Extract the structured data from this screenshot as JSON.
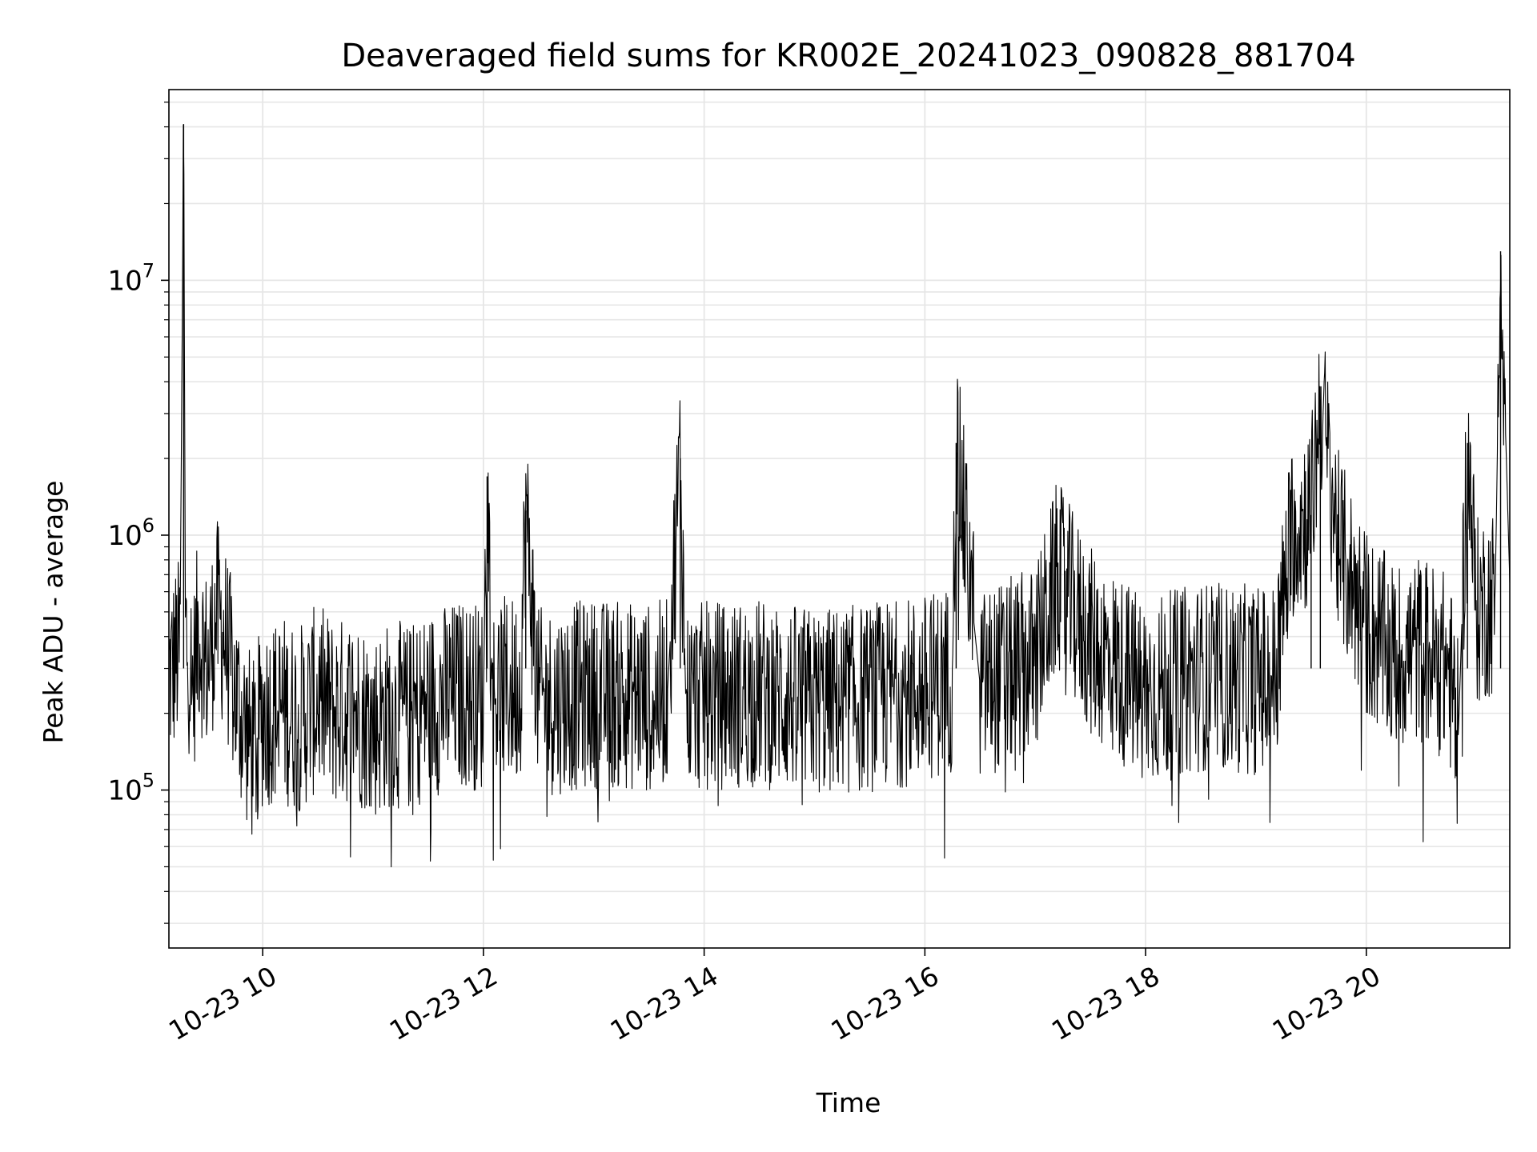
{
  "chart_data": {
    "type": "line",
    "title": "Deaveraged field sums for KR002E_20241023_090828_881704",
    "xlabel": "Time",
    "ylabel": "Peak ADU - average",
    "x_ticks": [
      {
        "time": "2024-10-23 10:00",
        "label": "10-23 10"
      },
      {
        "time": "2024-10-23 12:00",
        "label": "10-23 12"
      },
      {
        "time": "2024-10-23 14:00",
        "label": "10-23 14"
      },
      {
        "time": "2024-10-23 16:00",
        "label": "10-23 16"
      },
      {
        "time": "2024-10-23 18:00",
        "label": "10-23 18"
      },
      {
        "time": "2024-10-23 20:00",
        "label": "10-23 20"
      }
    ],
    "xlim": [
      "2024-10-23 09:09",
      "2024-10-23 21:18"
    ],
    "y_scale": "log",
    "y_ticks": [
      {
        "value": 100000,
        "base": "10",
        "exp": "5"
      },
      {
        "value": 1000000,
        "base": "10",
        "exp": "6"
      },
      {
        "value": 10000000,
        "base": "10",
        "exp": "7"
      }
    ],
    "ylim": [
      24000,
      56000000
    ],
    "grid": true,
    "line_color": "#000000",
    "grid_color": "#e6e6e6",
    "series": [
      {
        "values": [
          [
            "2024-10-23 09:09",
            280000
          ],
          [
            "2024-10-23 09:15",
            360000
          ],
          [
            "2024-10-23 09:17",
            41000000
          ],
          [
            "2024-10-23 09:18",
            420000
          ],
          [
            "2024-10-23 09:22",
            250000
          ],
          [
            "2024-10-23 09:25",
            430000
          ],
          [
            "2024-10-23 09:30",
            300000
          ],
          [
            "2024-10-23 09:35",
            500000
          ],
          [
            "2024-10-23 09:40",
            380000
          ],
          [
            "2024-10-23 09:45",
            240000
          ],
          [
            "2024-10-23 09:50",
            180000
          ],
          [
            "2024-10-23 09:55",
            140000
          ],
          [
            "2024-10-23 10:00",
            200000
          ],
          [
            "2024-10-23 10:10",
            210000
          ],
          [
            "2024-10-23 10:20",
            190000
          ],
          [
            "2024-10-23 10:30",
            230000
          ],
          [
            "2024-10-23 10:40",
            200000
          ],
          [
            "2024-10-23 10:50",
            210000
          ],
          [
            "2024-10-23 11:00",
            180000
          ],
          [
            "2024-10-23 11:10",
            200000
          ],
          [
            "2024-10-23 11:20",
            190000
          ],
          [
            "2024-10-23 11:30",
            220000
          ],
          [
            "2024-10-23 11:40",
            230000
          ],
          [
            "2024-10-23 11:50",
            240000
          ],
          [
            "2024-10-23 12:00",
            230000
          ],
          [
            "2024-10-23 12:02",
            1700000
          ],
          [
            "2024-10-23 12:05",
            240000
          ],
          [
            "2024-10-23 12:20",
            250000
          ],
          [
            "2024-10-23 12:23",
            1250000
          ],
          [
            "2024-10-23 12:30",
            220000
          ],
          [
            "2024-10-23 13:00",
            240000
          ],
          [
            "2024-10-23 13:30",
            230000
          ],
          [
            "2024-10-23 13:40",
            240000
          ],
          [
            "2024-10-23 13:47",
            2000000
          ],
          [
            "2024-10-23 13:50",
            230000
          ],
          [
            "2024-10-23 14:30",
            240000
          ],
          [
            "2024-10-23 15:00",
            220000
          ],
          [
            "2024-10-23 15:30",
            230000
          ],
          [
            "2024-10-23 16:00",
            250000
          ],
          [
            "2024-10-23 16:15",
            280000
          ],
          [
            "2024-10-23 16:17",
            2300000
          ],
          [
            "2024-10-23 16:30",
            260000
          ],
          [
            "2024-10-23 17:00",
            320000
          ],
          [
            "2024-10-23 17:12",
            700000
          ],
          [
            "2024-10-23 17:30",
            380000
          ],
          [
            "2024-10-23 18:00",
            240000
          ],
          [
            "2024-10-23 18:30",
            280000
          ],
          [
            "2024-10-23 19:00",
            270000
          ],
          [
            "2024-10-23 19:10",
            280000
          ],
          [
            "2024-10-23 19:20",
            1100000
          ],
          [
            "2024-10-23 19:30",
            1200000
          ],
          [
            "2024-10-23 19:35",
            3400000
          ],
          [
            "2024-10-23 19:45",
            900000
          ],
          [
            "2024-10-23 20:00",
            450000
          ],
          [
            "2024-10-23 20:15",
            330000
          ],
          [
            "2024-10-23 20:30",
            360000
          ],
          [
            "2024-10-23 20:45",
            300000
          ],
          [
            "2024-10-23 20:50",
            160000
          ],
          [
            "2024-10-23 20:55",
            2300000
          ],
          [
            "2024-10-23 21:00",
            500000
          ],
          [
            "2024-10-23 21:10",
            560000
          ],
          [
            "2024-10-23 21:13",
            13000000
          ],
          [
            "2024-10-23 21:18",
            650000
          ]
        ]
      }
    ]
  }
}
